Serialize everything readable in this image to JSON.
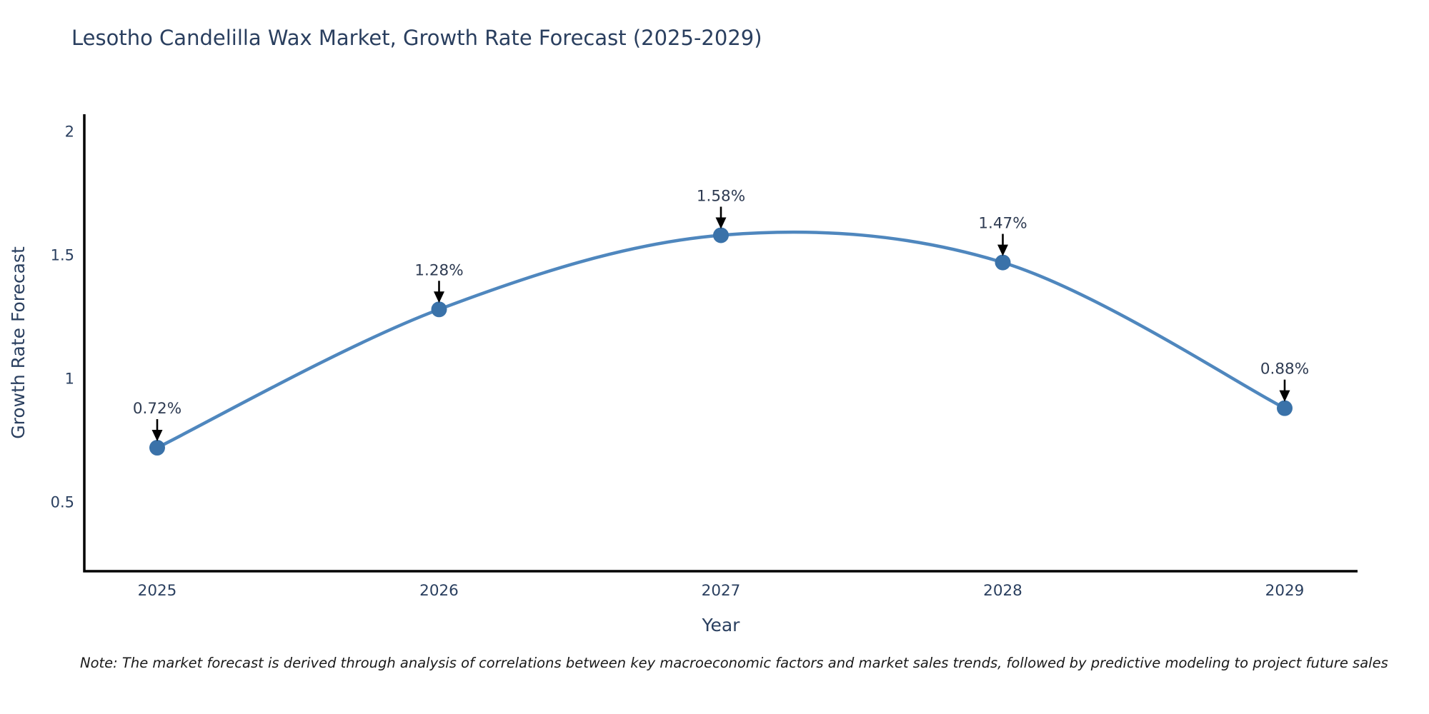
{
  "title": "Lesotho Candelilla Wax Market, Growth Rate Forecast (2025-2029)",
  "note": "Note: The market forecast is derived through analysis of correlations between key macroeconomic factors and market sales trends, followed by predictive modeling to project future sales",
  "colors": {
    "line": "#4f87be",
    "marker": "#3a72a9",
    "axis": "#000000",
    "arrow": "#000000",
    "chart_text": "#2a3f5f",
    "annotation_text": "#2e3b52",
    "background": "#ffffff"
  },
  "chart_data": {
    "type": "line",
    "title": "Lesotho Candelilla Wax Market, Growth Rate Forecast (2025-2029)",
    "xlabel": "Year",
    "ylabel": "Growth Rate Forecast",
    "x": [
      2025,
      2026,
      2027,
      2028,
      2029
    ],
    "values": [
      0.72,
      1.28,
      1.58,
      1.47,
      0.88
    ],
    "point_labels": [
      "0.72%",
      "1.28%",
      "1.58%",
      "1.47%",
      "0.88%"
    ],
    "xticks": [
      "2025",
      "2026",
      "2027",
      "2028",
      "2029"
    ],
    "yticks": [
      0.5,
      1,
      1.5,
      2
    ],
    "ylim": [
      0.22,
      2.07
    ],
    "line_shape": "spline",
    "markers": true,
    "grid": false,
    "legend": "none"
  }
}
